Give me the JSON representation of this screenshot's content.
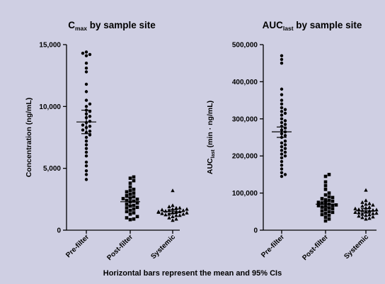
{
  "caption": "Horizontal bars represent the mean and 95% CIs",
  "chart_data": [
    {
      "type": "scatter",
      "panel_id": "cmax",
      "title": "C",
      "title_sub": "max",
      "title_rest": " by sample site",
      "ylabel": "Concentration (ng/mL)",
      "ylabel_sub": "",
      "ylabel_rest": "",
      "ylim": [
        0,
        15000
      ],
      "yticks": [
        0,
        5000,
        10000,
        15000
      ],
      "ytick_labels": [
        "0",
        "5,000",
        "10,000",
        "15,000"
      ],
      "categories": [
        "Pre-filter",
        "Post-filter",
        "Systemic"
      ],
      "markers": [
        "circle",
        "square",
        "triangle"
      ],
      "groups": [
        {
          "category": "Pre-filter",
          "mean": 8750,
          "ci_low": 7800,
          "ci_high": 9700,
          "values": [
            14400,
            14300,
            14200,
            14100,
            13500,
            13100,
            12800,
            11800,
            11200,
            10500,
            10200,
            10000,
            9700,
            9600,
            9400,
            9200,
            9100,
            8800,
            8700,
            8500,
            8400,
            8300,
            8100,
            8000,
            7900,
            7700,
            7500,
            7200,
            6900,
            6600,
            6300,
            6000,
            5500,
            5200,
            4800,
            4500,
            4100
          ]
        },
        {
          "category": "Post-filter",
          "mean": 2300,
          "ci_low": 2000,
          "ci_high": 2650,
          "values": [
            4300,
            4200,
            4000,
            3800,
            3500,
            3300,
            3200,
            3100,
            3000,
            2900,
            2800,
            2700,
            2600,
            2500,
            2400,
            2300,
            2200,
            2100,
            2000,
            1950,
            1800,
            1700,
            1600,
            1500,
            1400,
            1300,
            1100,
            1000,
            900,
            850,
            2350,
            2550,
            1850
          ]
        },
        {
          "category": "Systemic",
          "mean": 1500,
          "ci_low": 1350,
          "ci_high": 1650,
          "values": [
            3200,
            2000,
            1900,
            1800,
            1800,
            1700,
            1700,
            1600,
            1600,
            1500,
            1500,
            1500,
            1400,
            1400,
            1300,
            1300,
            1200,
            1200,
            1100,
            1000,
            900,
            800,
            1250,
            1650,
            1550,
            1450,
            1350
          ]
        }
      ]
    },
    {
      "type": "scatter",
      "panel_id": "auc",
      "title": "AUC",
      "title_sub": "last",
      "title_rest": " by sample site",
      "ylabel": "AUC",
      "ylabel_sub": "last",
      "ylabel_rest": " (min · ng/mL)",
      "ylim": [
        0,
        500000
      ],
      "yticks": [
        0,
        100000,
        200000,
        300000,
        400000,
        500000
      ],
      "ytick_labels": [
        "0",
        "100,000",
        "200,000",
        "300,000",
        "400,000",
        "500,000"
      ],
      "categories": [
        "Pre-filter",
        "Post-filter",
        "Systemic"
      ],
      "markers": [
        "circle",
        "square",
        "triangle"
      ],
      "groups": [
        {
          "category": "Pre-filter",
          "mean": 265000,
          "ci_low": 250000,
          "ci_high": 278000,
          "values": [
            470000,
            460000,
            450000,
            380000,
            365000,
            350000,
            340000,
            330000,
            325000,
            320000,
            315000,
            310000,
            300000,
            295000,
            290000,
            285000,
            280000,
            275000,
            270000,
            265000,
            260000,
            255000,
            250000,
            240000,
            235000,
            230000,
            225000,
            220000,
            215000,
            210000,
            205000,
            200000,
            195000,
            185000,
            175000,
            165000,
            155000,
            150000,
            145000
          ]
        },
        {
          "category": "Post-filter",
          "mean": 70000,
          "ci_low": 62000,
          "ci_high": 78000,
          "values": [
            150000,
            145000,
            130000,
            120000,
            110000,
            100000,
            95000,
            90000,
            88000,
            85000,
            82000,
            80000,
            78000,
            75000,
            72000,
            70000,
            68000,
            66000,
            64000,
            62000,
            60000,
            58000,
            55000,
            52000,
            50000,
            48000,
            45000,
            42000,
            40000,
            35000,
            30000,
            25000,
            73000,
            67000
          ]
        },
        {
          "category": "Systemic",
          "mean": 52000,
          "ci_low": 46000,
          "ci_high": 58000,
          "values": [
            108000,
            80000,
            75000,
            72000,
            70000,
            68000,
            65000,
            62000,
            60000,
            58000,
            56000,
            55000,
            53000,
            52000,
            50000,
            48000,
            46000,
            45000,
            43000,
            42000,
            40000,
            38000,
            36000,
            34000,
            32000,
            30000,
            54000,
            47000
          ]
        }
      ]
    }
  ]
}
